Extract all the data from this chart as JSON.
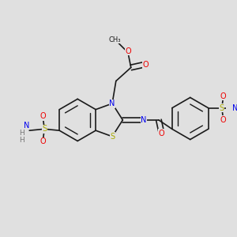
{
  "bg_color": "#e0e0e0",
  "bond_color": "#1a1a1a",
  "bond_width": 1.2,
  "dbo": 0.012,
  "atom_colors": {
    "C": "#1a1a1a",
    "N": "#0000ee",
    "O": "#ee0000",
    "S": "#aaaa00",
    "H": "#777777"
  },
  "figsize": [
    3.0,
    3.0
  ],
  "dpi": 100
}
